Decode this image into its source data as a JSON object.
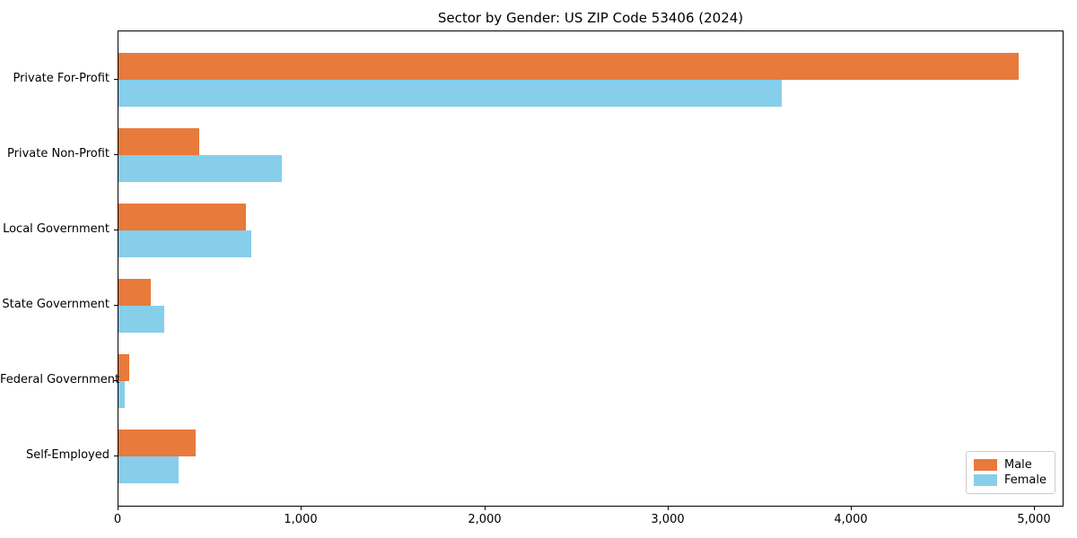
{
  "chart_data": {
    "type": "bar",
    "orientation": "horizontal",
    "title": "Sector by Gender: US ZIP Code 53406 (2024)",
    "categories": [
      "Private For-Profit",
      "Private Non-Profit",
      "Local Government",
      "State Government",
      "Federal Government",
      "Self-Employed"
    ],
    "series": [
      {
        "name": "Male",
        "color": "#E87A3C",
        "values": [
          4910,
          440,
          695,
          178,
          60,
          420
        ]
      },
      {
        "name": "Female",
        "color": "#87CEEB",
        "values": [
          3620,
          890,
          725,
          250,
          36,
          328
        ]
      }
    ],
    "xlabel": "",
    "ylabel": "",
    "xlim": [
      0,
      5160
    ],
    "xticks": [
      0,
      1000,
      2000,
      3000,
      4000,
      5000
    ],
    "xtick_labels": [
      "0",
      "1,000",
      "2,000",
      "3,000",
      "4,000",
      "5,000"
    ],
    "grid": false,
    "legend_position": "lower right"
  }
}
